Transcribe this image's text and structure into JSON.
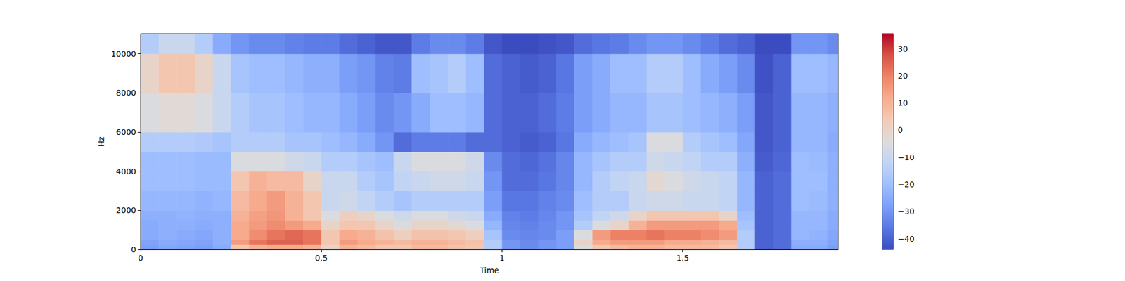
{
  "chart_data": {
    "type": "heatmap",
    "xlabel": "Time",
    "ylabel": "Hz",
    "xlim": [
      0,
      1.93
    ],
    "xticks": [
      0,
      0.5,
      1,
      1.5
    ],
    "ylim": [
      0,
      11025
    ],
    "yticks": [
      0,
      2000,
      4000,
      6000,
      8000,
      10000
    ],
    "grid": false,
    "time_edges": [
      0,
      0.05,
      0.1,
      0.15,
      0.2,
      0.25,
      0.3,
      0.35,
      0.4,
      0.45,
      0.5,
      0.55,
      0.6,
      0.65,
      0.7,
      0.75,
      0.8,
      0.85,
      0.9,
      0.95,
      1.0,
      1.05,
      1.1,
      1.15,
      1.2,
      1.25,
      1.3,
      1.35,
      1.4,
      1.45,
      1.5,
      1.55,
      1.6,
      1.65,
      1.7,
      1.75,
      1.8,
      1.85,
      1.9,
      1.93
    ],
    "freq_edges": [
      0,
      250,
      500,
      1000,
      1500,
      2000,
      3000,
      4000,
      5000,
      6000,
      8000,
      10000,
      11025
    ],
    "cells": [
      [
        -28,
        -26,
        -27,
        -28,
        -25,
        5,
        10,
        12,
        12,
        10,
        0,
        10,
        8,
        5,
        5,
        8,
        8,
        6,
        5,
        -15,
        -30,
        -32,
        -30,
        -28,
        -5,
        5,
        8,
        10,
        10,
        8,
        8,
        8,
        5,
        -15,
        -40,
        -38,
        -25,
        -25,
        -28
      ],
      [
        -27,
        -25,
        -26,
        -27,
        -24,
        15,
        22,
        25,
        25,
        22,
        5,
        15,
        12,
        10,
        8,
        10,
        10,
        8,
        6,
        -15,
        -30,
        -32,
        -30,
        -28,
        0,
        12,
        15,
        15,
        15,
        12,
        12,
        10,
        8,
        -15,
        -40,
        -38,
        -24,
        -24,
        -27
      ],
      [
        -25,
        -24,
        -25,
        -26,
        -24,
        12,
        18,
        22,
        24,
        22,
        5,
        12,
        10,
        6,
        2,
        6,
        6,
        5,
        2,
        -18,
        -32,
        -33,
        -32,
        -28,
        -5,
        15,
        20,
        20,
        22,
        20,
        20,
        18,
        15,
        -15,
        -40,
        -38,
        -22,
        -23,
        -26
      ],
      [
        -25,
        -24,
        -24,
        -25,
        -24,
        12,
        15,
        18,
        15,
        12,
        0,
        5,
        5,
        0,
        -5,
        0,
        0,
        -2,
        -5,
        -22,
        -33,
        -34,
        -32,
        -30,
        -15,
        -5,
        0,
        10,
        15,
        15,
        15,
        15,
        12,
        -18,
        -40,
        -38,
        -22,
        -22,
        -25
      ],
      [
        -24,
        -24,
        -23,
        -24,
        -24,
        10,
        14,
        16,
        10,
        5,
        -5,
        2,
        0,
        -5,
        -8,
        -5,
        -5,
        -8,
        -10,
        -25,
        -34,
        -35,
        -33,
        -30,
        -18,
        -12,
        -8,
        0,
        5,
        5,
        5,
        5,
        0,
        -20,
        -40,
        -38,
        -22,
        -22,
        -25
      ],
      [
        -22,
        -22,
        -22,
        -23,
        -22,
        8,
        12,
        15,
        10,
        5,
        -10,
        -8,
        -12,
        -15,
        -18,
        -15,
        -15,
        -15,
        -15,
        -28,
        -36,
        -36,
        -34,
        -32,
        -20,
        -15,
        -15,
        -10,
        -8,
        -8,
        -10,
        -10,
        -12,
        -22,
        -40,
        -38,
        -20,
        -21,
        -24
      ],
      [
        -20,
        -20,
        -20,
        -21,
        -21,
        5,
        10,
        8,
        8,
        0,
        -10,
        -10,
        -15,
        -18,
        -12,
        -10,
        -8,
        -8,
        -10,
        -30,
        -38,
        -38,
        -36,
        -33,
        -22,
        -15,
        -12,
        -10,
        -2,
        -5,
        -8,
        -10,
        -12,
        -22,
        -40,
        -38,
        -20,
        -20,
        -24
      ],
      [
        -20,
        -20,
        -20,
        -21,
        -21,
        -5,
        -5,
        -5,
        -8,
        -10,
        -15,
        -15,
        -18,
        -20,
        -10,
        -5,
        -5,
        -5,
        -8,
        -32,
        -38,
        -39,
        -37,
        -33,
        -22,
        -18,
        -15,
        -15,
        -8,
        -10,
        -12,
        -15,
        -15,
        -24,
        -41,
        -39,
        -20,
        -21,
        -24
      ],
      [
        -15,
        -15,
        -15,
        -16,
        -18,
        -15,
        -15,
        -15,
        -18,
        -18,
        -20,
        -22,
        -25,
        -30,
        -38,
        -35,
        -35,
        -35,
        -38,
        -38,
        -40,
        -41,
        -40,
        -36,
        -25,
        -22,
        -20,
        -18,
        -5,
        -5,
        -15,
        -18,
        -20,
        -26,
        -42,
        -40,
        -22,
        -22,
        -25
      ],
      [
        -5,
        -3,
        -3,
        -5,
        -10,
        -15,
        -18,
        -18,
        -20,
        -22,
        -22,
        -25,
        -28,
        -32,
        -30,
        -25,
        -20,
        -20,
        -22,
        -38,
        -40,
        -40,
        -38,
        -35,
        -28,
        -25,
        -22,
        -22,
        -18,
        -18,
        -20,
        -22,
        -24,
        -28,
        -42,
        -40,
        -22,
        -22,
        -24
      ],
      [
        0,
        5,
        5,
        0,
        -10,
        -18,
        -20,
        -20,
        -22,
        -24,
        -24,
        -28,
        -30,
        -34,
        -35,
        -20,
        -18,
        -15,
        -20,
        -38,
        -40,
        -41,
        -40,
        -36,
        -28,
        -25,
        -20,
        -20,
        -15,
        -15,
        -20,
        -25,
        -28,
        -32,
        -43,
        -40,
        -20,
        -20,
        -22
      ],
      [
        -15,
        -10,
        -10,
        -15,
        -25,
        -30,
        -32,
        -32,
        -34,
        -35,
        -35,
        -38,
        -40,
        -42,
        -42,
        -35,
        -32,
        -32,
        -35,
        -42,
        -44,
        -44,
        -43,
        -42,
        -38,
        -36,
        -35,
        -32,
        -30,
        -30,
        -32,
        -35,
        -38,
        -40,
        -45,
        -44,
        -30,
        -30,
        -32
      ]
    ],
    "colorbar": {
      "range": [
        -44,
        35.5
      ],
      "ticks": [
        {
          "value": -40,
          "label": "−40"
        },
        {
          "value": -30,
          "label": "−30"
        },
        {
          "value": -20,
          "label": "−20"
        },
        {
          "value": -10,
          "label": "−10"
        },
        0,
        10,
        20,
        30
      ]
    }
  }
}
